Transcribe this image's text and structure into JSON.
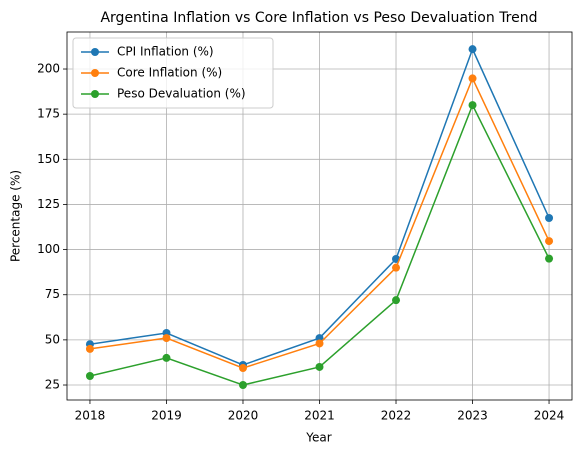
{
  "chart_data": {
    "type": "line",
    "title": "Argentina Inflation vs Core Inflation vs Peso Devaluation Trend",
    "xlabel": "Year",
    "ylabel": "Percentage (%)",
    "x": [
      2018,
      2019,
      2020,
      2021,
      2022,
      2023,
      2024
    ],
    "series": [
      {
        "name": "CPI Inflation (%)",
        "color": "#1f77b4",
        "values": [
          47.6,
          53.8,
          36.1,
          51.0,
          94.8,
          211.0,
          117.5
        ]
      },
      {
        "name": "Core Inflation (%)",
        "color": "#ff7f0e",
        "values": [
          45.0,
          51.0,
          34.4,
          48.0,
          90.0,
          194.8,
          104.7
        ]
      },
      {
        "name": "Peso Devaluation (%)",
        "color": "#2ca02c",
        "values": [
          30.0,
          40.0,
          25.0,
          35.0,
          72.0,
          180.0,
          95.0
        ]
      }
    ],
    "xlim": [
      2017.7,
      2024.3
    ],
    "xticks": [
      2018,
      2019,
      2020,
      2021,
      2022,
      2023,
      2024
    ],
    "ylim": [
      16.7,
      220.5
    ],
    "yticks": [
      25,
      50,
      75,
      100,
      125,
      150,
      175,
      200
    ],
    "grid": true,
    "legend": "upper left"
  }
}
